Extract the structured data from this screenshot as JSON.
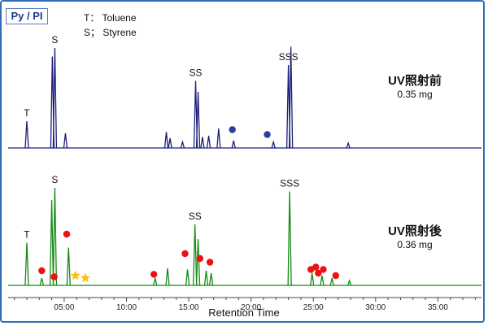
{
  "badge_label": "Py / PI",
  "legend": [
    {
      "abbr": "T",
      "sep": "：",
      "name": "Toluene"
    },
    {
      "abbr": "S",
      "sep": "；",
      "name": "Styrene"
    }
  ],
  "samples": [
    {
      "title": "UV照射前",
      "mass": "0.35 mg"
    },
    {
      "title": "UV照射後",
      "mass": "0.36 mg"
    }
  ],
  "colors": {
    "top_trace": "#1c1f7a",
    "bottom_trace": "#158a12",
    "dot_top": "#2e3a9e",
    "dot_bottom": "#ee1111",
    "star": "#ffc000",
    "frame": "#2f6db5"
  },
  "chart_data": {
    "type": "line",
    "xlabel": "Retention Time",
    "x_ticks": [
      "05:00",
      "10:00",
      "15:00",
      "20:00",
      "25:00",
      "30:00",
      "35:00"
    ],
    "x_tick_values": [
      5,
      10,
      15,
      20,
      25,
      30,
      35
    ],
    "xlim": [
      0.5,
      38.5
    ],
    "series": [
      {
        "name": "UV照射前",
        "peaks": [
          {
            "t": 2.0,
            "h": 0.22,
            "label": "T"
          },
          {
            "t": 4.05,
            "h": 0.75,
            "label": ""
          },
          {
            "t": 4.25,
            "h": 0.82,
            "label": "S"
          },
          {
            "t": 5.1,
            "h": 0.12,
            "label": ""
          },
          {
            "t": 13.2,
            "h": 0.13,
            "label": ""
          },
          {
            "t": 13.5,
            "h": 0.08,
            "label": ""
          },
          {
            "t": 14.5,
            "h": 0.05,
            "label": ""
          },
          {
            "t": 15.55,
            "h": 0.55,
            "label": "SS"
          },
          {
            "t": 15.75,
            "h": 0.46,
            "label": ""
          },
          {
            "t": 16.1,
            "h": 0.09,
            "label": ""
          },
          {
            "t": 16.6,
            "h": 0.1,
            "label": ""
          },
          {
            "t": 17.4,
            "h": 0.16,
            "label": ""
          },
          {
            "t": 18.6,
            "h": 0.06,
            "label": ""
          },
          {
            "t": 21.8,
            "h": 0.05,
            "label": ""
          },
          {
            "t": 23.0,
            "h": 0.68,
            "label": "SSS"
          },
          {
            "t": 23.2,
            "h": 0.83,
            "label": ""
          },
          {
            "t": 27.8,
            "h": 0.04,
            "label": ""
          }
        ],
        "markers": [
          {
            "t": 18.5,
            "h": 0.15,
            "shape": "dot"
          },
          {
            "t": 21.3,
            "h": 0.11,
            "shape": "dot"
          }
        ]
      },
      {
        "name": "UV照射後",
        "peaks": [
          {
            "t": 2.0,
            "h": 0.35,
            "label": "T"
          },
          {
            "t": 3.2,
            "h": 0.06,
            "label": ""
          },
          {
            "t": 4.0,
            "h": 0.7,
            "label": ""
          },
          {
            "t": 4.25,
            "h": 0.8,
            "label": "S"
          },
          {
            "t": 5.35,
            "h": 0.31,
            "label": ""
          },
          {
            "t": 12.3,
            "h": 0.06,
            "label": ""
          },
          {
            "t": 13.3,
            "h": 0.14,
            "label": ""
          },
          {
            "t": 14.9,
            "h": 0.13,
            "label": ""
          },
          {
            "t": 15.5,
            "h": 0.5,
            "label": "SS"
          },
          {
            "t": 15.75,
            "h": 0.38,
            "label": ""
          },
          {
            "t": 16.4,
            "h": 0.12,
            "label": ""
          },
          {
            "t": 16.8,
            "h": 0.1,
            "label": ""
          },
          {
            "t": 23.1,
            "h": 0.77,
            "label": "SSS"
          },
          {
            "t": 24.9,
            "h": 0.1,
            "label": ""
          },
          {
            "t": 25.7,
            "h": 0.08,
            "label": ""
          },
          {
            "t": 26.5,
            "h": 0.06,
            "label": ""
          },
          {
            "t": 27.9,
            "h": 0.04,
            "label": ""
          }
        ],
        "markers": [
          {
            "t": 3.2,
            "h": 0.12,
            "shape": "dot"
          },
          {
            "t": 4.2,
            "h": 0.07,
            "shape": "dot"
          },
          {
            "t": 5.2,
            "h": 0.42,
            "shape": "dot"
          },
          {
            "t": 5.9,
            "h": 0.08,
            "shape": "star"
          },
          {
            "t": 6.7,
            "h": 0.06,
            "shape": "star"
          },
          {
            "t": 12.2,
            "h": 0.09,
            "shape": "dot"
          },
          {
            "t": 14.7,
            "h": 0.26,
            "shape": "dot"
          },
          {
            "t": 15.9,
            "h": 0.22,
            "shape": "dot"
          },
          {
            "t": 16.7,
            "h": 0.19,
            "shape": "dot"
          },
          {
            "t": 24.8,
            "h": 0.13,
            "shape": "dot"
          },
          {
            "t": 25.2,
            "h": 0.15,
            "shape": "dot"
          },
          {
            "t": 25.4,
            "h": 0.1,
            "shape": "dot"
          },
          {
            "t": 25.8,
            "h": 0.13,
            "shape": "dot"
          },
          {
            "t": 26.8,
            "h": 0.08,
            "shape": "dot"
          }
        ]
      }
    ]
  }
}
